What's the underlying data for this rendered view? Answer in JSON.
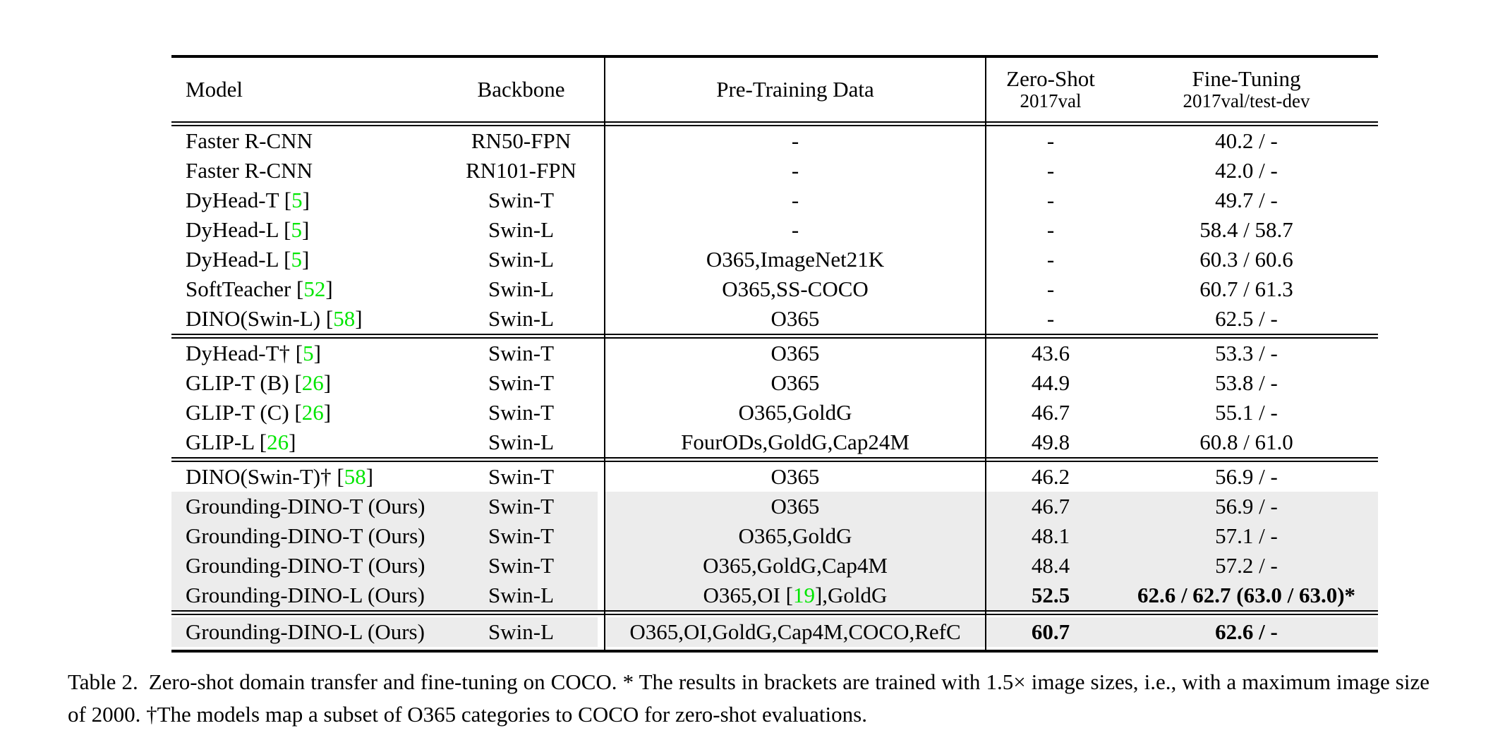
{
  "colors": {
    "citation_green": "#00e600",
    "row_highlight": "#ececec"
  },
  "table": {
    "header": {
      "model": "Model",
      "backbone": "Backbone",
      "pretrain": "Pre-Training Data",
      "zero_shot_title": "Zero-Shot",
      "zero_shot_sub": "2017val",
      "fine_tuning_title": "Fine-Tuning",
      "fine_tuning_sub": "2017val/test-dev"
    },
    "sections": [
      {
        "rows": [
          {
            "model": "Faster R-CNN",
            "backbone": "RN50-FPN",
            "pretrain": "-",
            "zero_shot": "-",
            "fine_tuning": "40.2 / -"
          },
          {
            "model": "Faster R-CNN",
            "backbone": "RN101-FPN",
            "pretrain": "-",
            "zero_shot": "-",
            "fine_tuning": "42.0 / -"
          },
          {
            "model": "DyHead-T [«5»]",
            "backbone": "Swin-T",
            "pretrain": "-",
            "zero_shot": "-",
            "fine_tuning": "49.7 / -"
          },
          {
            "model": "DyHead-L [«5»]",
            "backbone": "Swin-L",
            "pretrain": "-",
            "zero_shot": "-",
            "fine_tuning": "58.4 / 58.7"
          },
          {
            "model": "DyHead-L [«5»]",
            "backbone": "Swin-L",
            "pretrain": "O365,ImageNet21K",
            "zero_shot": "-",
            "fine_tuning": "60.3 / 60.6"
          },
          {
            "model": "SoftTeacher [«52»]",
            "backbone": "Swin-L",
            "pretrain": "O365,SS-COCO",
            "zero_shot": "-",
            "fine_tuning": "60.7 / 61.3"
          },
          {
            "model": "DINO(Swin-L) [«58»]",
            "backbone": "Swin-L",
            "pretrain": "O365",
            "zero_shot": "-",
            "fine_tuning": "62.5 / -"
          }
        ]
      },
      {
        "rows": [
          {
            "model": "DyHead-T† [«5»]",
            "backbone": "Swin-T",
            "pretrain": "O365",
            "zero_shot": "43.6",
            "fine_tuning": "53.3 / -"
          },
          {
            "model": "GLIP-T (B) [«26»]",
            "backbone": "Swin-T",
            "pretrain": "O365",
            "zero_shot": "44.9",
            "fine_tuning": "53.8 / -"
          },
          {
            "model": "GLIP-T (C) [«26»]",
            "backbone": "Swin-T",
            "pretrain": "O365,GoldG",
            "zero_shot": "46.7",
            "fine_tuning": "55.1 / -"
          },
          {
            "model": "GLIP-L [«26»]",
            "backbone": "Swin-L",
            "pretrain": "FourODs,GoldG,Cap24M",
            "zero_shot": "49.8",
            "fine_tuning": "60.8 / 61.0"
          }
        ]
      },
      {
        "rows": [
          {
            "model": "DINO(Swin-T)† [«58»]",
            "backbone": "Swin-T",
            "pretrain": "O365",
            "zero_shot": "46.2",
            "fine_tuning": "56.9 / -"
          },
          {
            "model": "Grounding-DINO-T (Ours)",
            "backbone": "Swin-T",
            "pretrain": "O365",
            "zero_shot": "46.7",
            "fine_tuning": "56.9 / -",
            "highlight": true
          },
          {
            "model": "Grounding-DINO-T (Ours)",
            "backbone": "Swin-T",
            "pretrain": "O365,GoldG",
            "zero_shot": "48.1",
            "fine_tuning": "57.1 / -",
            "highlight": true
          },
          {
            "model": "Grounding-DINO-T (Ours)",
            "backbone": "Swin-T",
            "pretrain": "O365,GoldG,Cap4M",
            "zero_shot": "48.4",
            "fine_tuning": "57.2 / -",
            "highlight": true
          },
          {
            "model": "Grounding-DINO-L (Ours)",
            "backbone": "Swin-L",
            "pretrain": "O365,OI [«19»],GoldG",
            "zero_shot": "52.5",
            "fine_tuning": "62.6 / 62.7 (63.0 / 63.0)*",
            "highlight": true,
            "bold_values": true
          }
        ]
      },
      {
        "rows": [
          {
            "model": "Grounding-DINO-L (Ours)",
            "backbone": "Swin-L",
            "pretrain": "O365,OI,GoldG,Cap4M,COCO,RefC",
            "zero_shot": "60.7",
            "fine_tuning": "62.6 / -",
            "highlight": true,
            "bold_values": true
          }
        ]
      }
    ]
  },
  "caption": {
    "label": "Table 2.",
    "text": "Zero-shot domain transfer and fine-tuning on COCO. * The results in brackets are trained with 1.5× image sizes, i.e., with a maximum image size of 2000. †The models map a subset of O365 categories to COCO for zero-shot evaluations."
  }
}
